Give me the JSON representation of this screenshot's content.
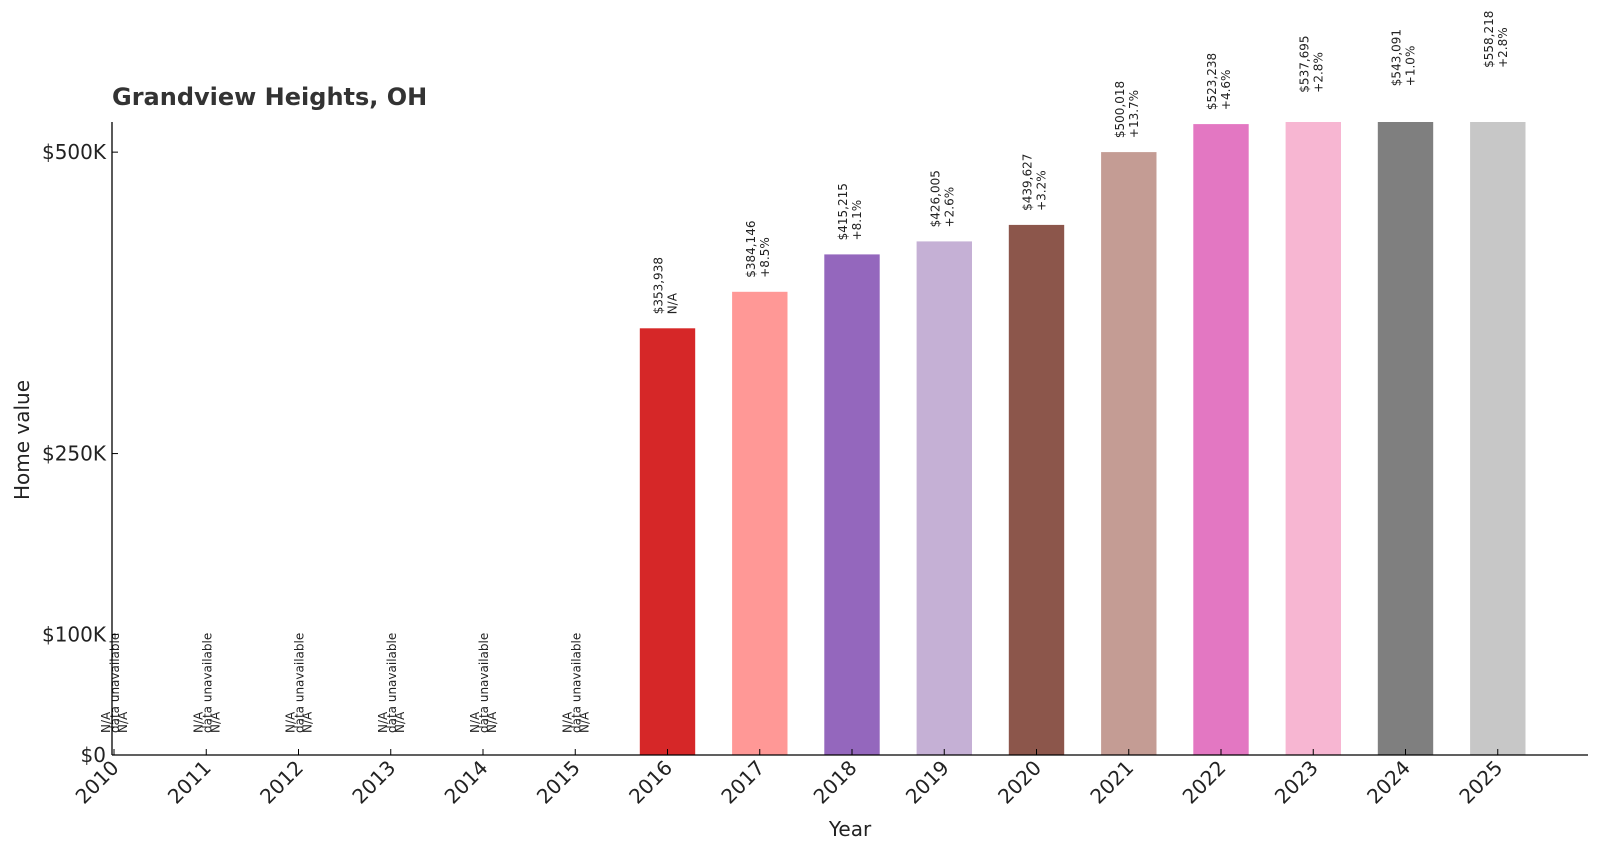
{
  "chart_data": {
    "type": "bar",
    "title": "Grandview Heights, OH",
    "xlabel": "Year",
    "ylabel": "Home value",
    "ylim": [
      0,
      525000
    ],
    "yticks": [
      {
        "value": 0,
        "label": "$0"
      },
      {
        "value": 100000,
        "label": "$100K"
      },
      {
        "value": 250000,
        "label": "$250K"
      },
      {
        "value": 500000,
        "label": "$500K"
      }
    ],
    "categories": [
      "2010",
      "2011",
      "2012",
      "2013",
      "2014",
      "2015",
      "2016",
      "2017",
      "2018",
      "2019",
      "2020",
      "2021",
      "2022",
      "2023",
      "2024",
      "2025"
    ],
    "values": [
      null,
      null,
      null,
      null,
      null,
      null,
      353938,
      384146,
      415215,
      426005,
      439627,
      500018,
      523238,
      537695,
      543091,
      558218
    ],
    "value_labels": [
      "N/A",
      "N/A",
      "N/A",
      "N/A",
      "N/A",
      "N/A",
      "$353,938",
      "$384,146",
      "$415,215",
      "$426,005",
      "$439,627",
      "$500,018",
      "$523,238",
      "$537,695",
      "$543,091",
      "$558,218"
    ],
    "change_labels": [
      "data unavailable",
      "data unavailable",
      "data unavailable",
      "data unavailable",
      "data unavailable",
      "data unavailable",
      "N/A",
      "+8.5%",
      "+8.1%",
      "+2.6%",
      "+3.2%",
      "+13.7%",
      "+4.6%",
      "+2.8%",
      "+1.0%",
      "+2.8%"
    ],
    "na_label": "N/A",
    "colors": [
      "#1f77b4",
      "#aec7e8",
      "#ff7f0e",
      "#ffbb78",
      "#2ca02c",
      "#98df8a",
      "#d62728",
      "#ff9896",
      "#9467bd",
      "#c5b0d5",
      "#8c564b",
      "#c49c94",
      "#e377c2",
      "#f7b6d2",
      "#7f7f7f",
      "#c7c7c7"
    ],
    "grid": false,
    "legend": "none"
  }
}
